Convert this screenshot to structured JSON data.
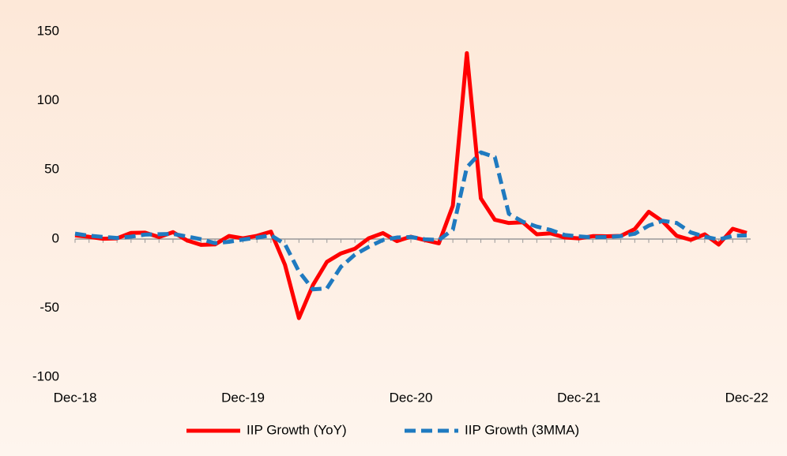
{
  "chart_data": {
    "type": "line",
    "categories": [
      "Dec-18",
      null,
      null,
      null,
      null,
      null,
      null,
      null,
      null,
      null,
      null,
      null,
      "Dec-19",
      null,
      null,
      null,
      null,
      null,
      null,
      null,
      null,
      null,
      null,
      null,
      "Dec-20",
      null,
      null,
      null,
      null,
      null,
      null,
      null,
      null,
      null,
      null,
      null,
      "Dec-21",
      null,
      null,
      null,
      null,
      null,
      null,
      null,
      null,
      null,
      null,
      null,
      "Dec-22"
    ],
    "series": [
      {
        "name": "IIP Growth (YoY)",
        "color": "#ff0000",
        "dash": false,
        "values": [
          2.5,
          1.5,
          0.1,
          0.4,
          4.3,
          4.5,
          1.3,
          4.9,
          -1.1,
          -4.3,
          -4,
          2.1,
          0.4,
          2.2,
          5.2,
          -18.7,
          -57.3,
          -33.4,
          -16.6,
          -10.5,
          -7.1,
          0.5,
          4.2,
          -1.6,
          1.6,
          -0.9,
          -3.2,
          24.1,
          134.4,
          29.3,
          13.8,
          11.5,
          12,
          3.3,
          4,
          1,
          0.4,
          2,
          1.9,
          2.2,
          7.1,
          19.6,
          12.6,
          2.2,
          -0.7,
          3.3,
          -4.1,
          7.3,
          4.3
        ]
      },
      {
        "name": "IIP Growth (3MMA)",
        "color": "#1f7ac0",
        "dash": true,
        "values": [
          3.8,
          2.3,
          1.4,
          0.7,
          1.6,
          3.1,
          3.4,
          3.6,
          1.7,
          -0.2,
          -3.1,
          -2.1,
          -0.5,
          0.9,
          2.6,
          -3.8,
          -23.6,
          -36.5,
          -35.8,
          -20.2,
          -11.4,
          -5.7,
          -0.8,
          1,
          1.4,
          -0.3,
          -0.8,
          6.7,
          51.8,
          62.6,
          59.2,
          18.2,
          12.4,
          8.9,
          6.4,
          2.8,
          1.8,
          1.1,
          1.4,
          2,
          3.7,
          9.6,
          13.1,
          11.5,
          4.7,
          1.6,
          -0.5,
          2.2,
          2.5
        ]
      }
    ],
    "ylim": [
      -100,
      150
    ],
    "yticks": [
      -100,
      -50,
      0,
      50,
      100,
      150
    ],
    "grid": false,
    "legend": "bottom"
  }
}
